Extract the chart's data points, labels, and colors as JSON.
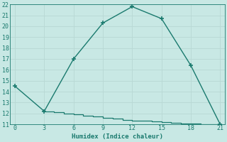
{
  "xlabel": "Humidex (Indice chaleur)",
  "upper_x": [
    0,
    3,
    6,
    9,
    12,
    15,
    18,
    21
  ],
  "upper_y": [
    14.5,
    12.2,
    17.0,
    20.3,
    21.8,
    20.7,
    16.4,
    11.0
  ],
  "lower_x": [
    3,
    4,
    5,
    6,
    7,
    8,
    9,
    10,
    11,
    12,
    13,
    14,
    15,
    16,
    17,
    18,
    19,
    20,
    21
  ],
  "lower_y": [
    12.2,
    12.1,
    12.0,
    11.9,
    11.8,
    11.7,
    11.6,
    11.5,
    11.4,
    11.35,
    11.3,
    11.25,
    11.2,
    11.15,
    11.1,
    11.05,
    11.02,
    11.0,
    10.9
  ],
  "line_color": "#1a7a6e",
  "bg_color": "#c8e8e4",
  "grid_major_color": "#b8d8d4",
  "grid_minor_color": "#d0e8e6",
  "xlim": [
    -0.5,
    21.5
  ],
  "ylim": [
    11,
    22
  ],
  "xticks": [
    0,
    3,
    6,
    9,
    12,
    15,
    18,
    21
  ],
  "yticks": [
    11,
    12,
    13,
    14,
    15,
    16,
    17,
    18,
    19,
    20,
    21,
    22
  ]
}
